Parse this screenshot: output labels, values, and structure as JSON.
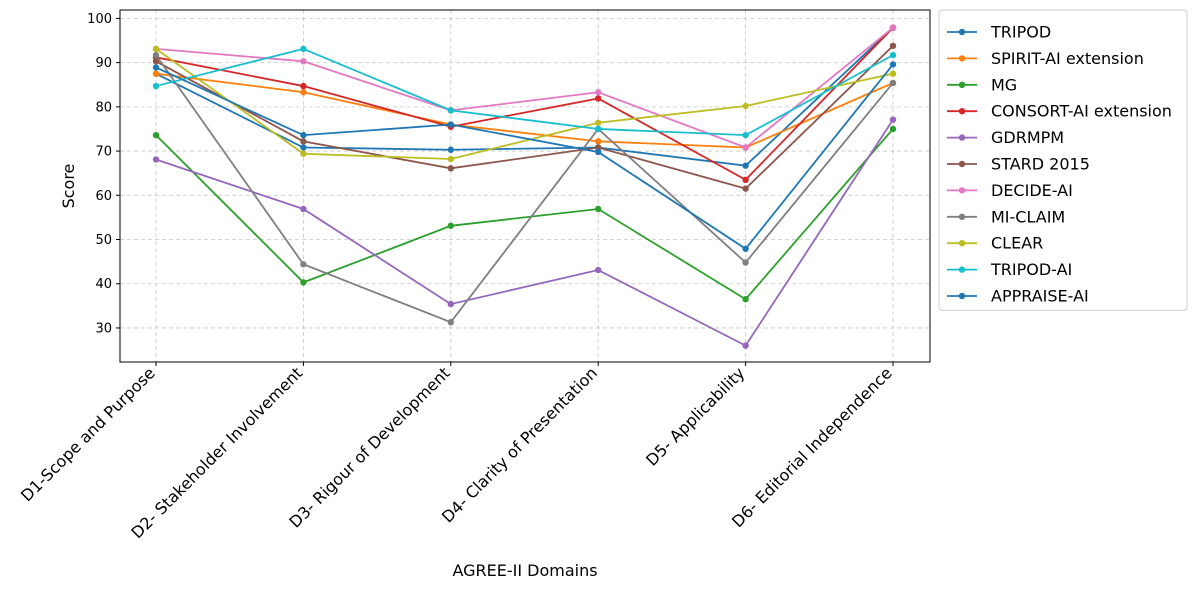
{
  "chart_data": {
    "type": "line",
    "xlabel": "AGREE-II Domains",
    "ylabel": "Score",
    "categories": [
      "D1-Scope and Purpose",
      "D2- Stakeholder Involvement",
      "D3- Rigour of Development",
      "D4- Clarity of Presentation",
      "D5- Applicability",
      "D6- Editorial Independence"
    ],
    "ylim": [
      22.3,
      101.9
    ],
    "yticks": [
      "30",
      "40",
      "50",
      "60",
      "70",
      "80",
      "90",
      "100"
    ],
    "grid": true,
    "legend_position": "outside-right",
    "series": [
      {
        "name": "TRIPOD",
        "color": "#1f77b4",
        "values": [
          87.5,
          70.8,
          70.3,
          70.8,
          66.7,
          97.9
        ]
      },
      {
        "name": "SPIRIT-AI extension",
        "color": "#ff7f0e",
        "values": [
          87.5,
          83.3,
          76.0,
          72.2,
          70.8,
          85.4
        ]
      },
      {
        "name": "MG",
        "color": "#2ca02c",
        "values": [
          73.6,
          40.3,
          53.1,
          56.9,
          36.5,
          75.0
        ]
      },
      {
        "name": "CONSORT-AI extension",
        "color": "#d62728",
        "values": [
          91.2,
          84.7,
          75.5,
          81.9,
          63.5,
          97.9
        ]
      },
      {
        "name": "GDRMPM",
        "color": "#9467bd",
        "values": [
          68.1,
          56.9,
          35.4,
          43.1,
          26.0,
          77.1
        ]
      },
      {
        "name": "STARD 2015",
        "color": "#8c564b",
        "values": [
          90.3,
          72.2,
          66.1,
          70.8,
          61.5,
          93.8
        ]
      },
      {
        "name": "DECIDE-AI",
        "color": "#e377c2",
        "values": [
          93.1,
          90.3,
          79.2,
          83.3,
          70.8,
          97.9
        ]
      },
      {
        "name": "MI-CLAIM",
        "color": "#7f7f7f",
        "values": [
          91.7,
          44.4,
          31.3,
          75.0,
          44.8,
          85.4
        ]
      },
      {
        "name": "CLEAR",
        "color": "#bcbd22",
        "values": [
          93.1,
          69.4,
          68.2,
          76.4,
          80.2,
          87.5
        ]
      },
      {
        "name": "TRIPOD-AI",
        "color": "#17becf",
        "values": [
          84.7,
          93.1,
          79.2,
          75.0,
          73.6,
          91.7
        ]
      },
      {
        "name": "APPRAISE-AI",
        "color": "#1f77b4",
        "values": [
          88.9,
          73.6,
          76.0,
          69.8,
          47.9,
          89.6
        ]
      }
    ]
  }
}
